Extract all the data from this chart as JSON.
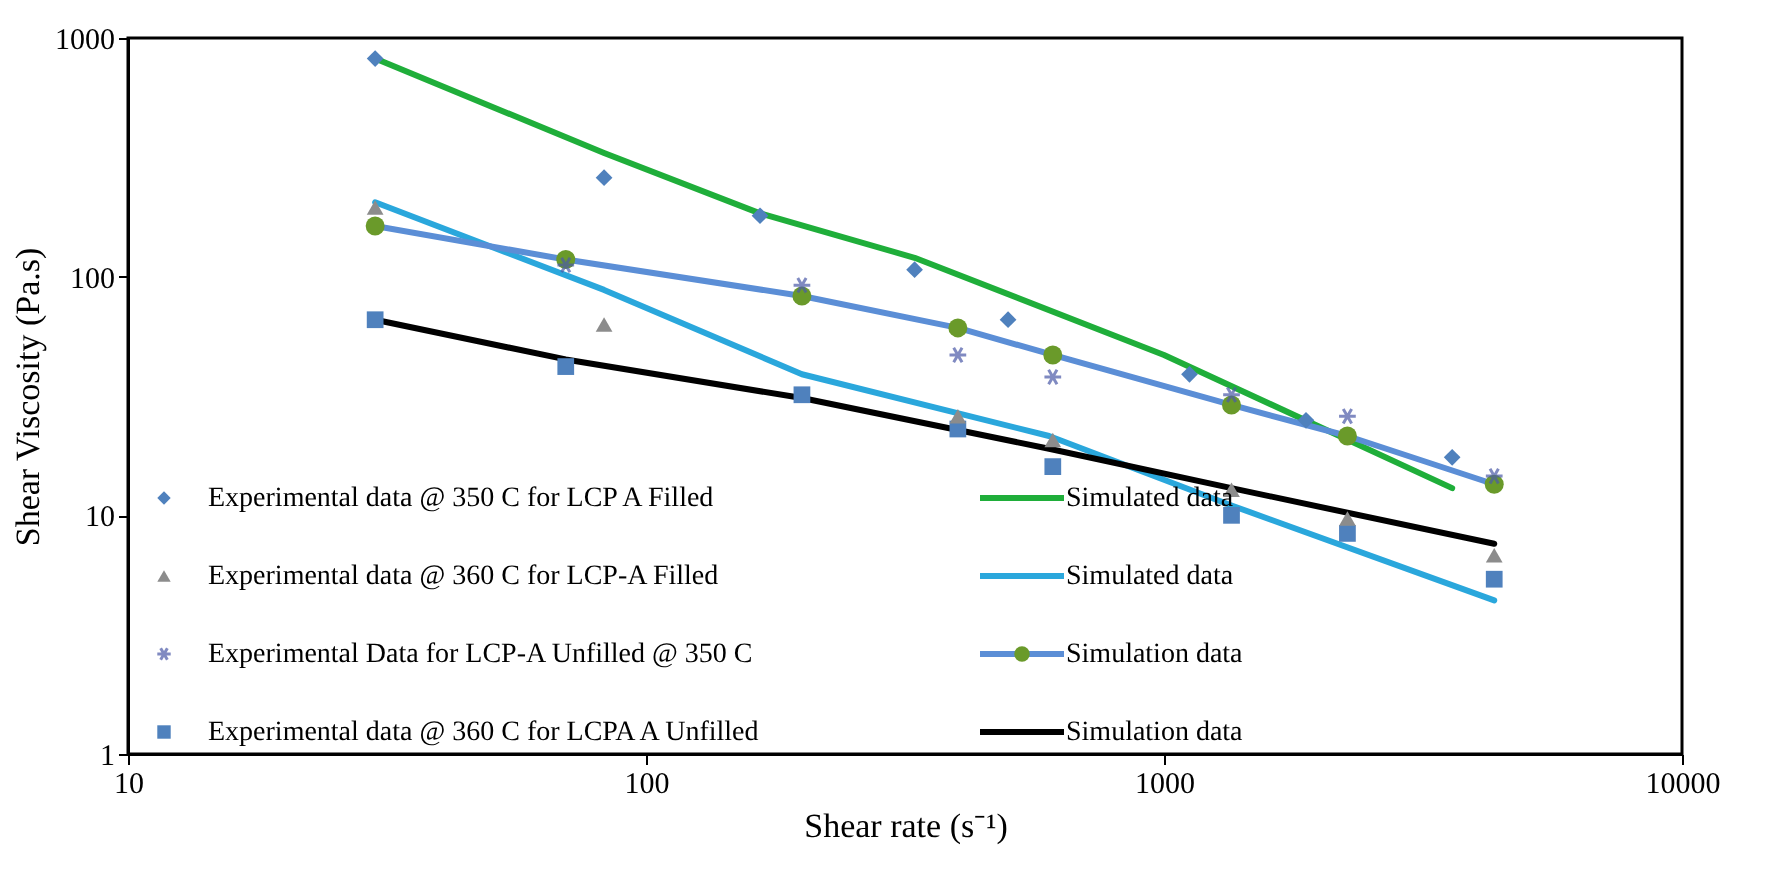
{
  "chart_data": {
    "type": "scatter",
    "xlabel": "Shear rate (s⁻¹)",
    "ylabel": "Shear Viscosity (Pa.s)",
    "log": "xy",
    "xlim": [
      10,
      10000
    ],
    "ylim": [
      1,
      1000
    ],
    "xticks": [
      10,
      100,
      1000,
      10000
    ],
    "yticks": [
      1,
      10,
      100,
      1000
    ],
    "grid": false,
    "legend": "bottom left",
    "series": [
      {
        "name": "Experimental data @ 350 C for LCP A Filled",
        "marker": "diamond",
        "color": "#4f81bd",
        "x": [
          30,
          83,
          166,
          330,
          500,
          1120,
          1880,
          3600
        ],
        "values": [
          820,
          260,
          180,
          107,
          66,
          39,
          25,
          17.5
        ]
      },
      {
        "name": "Simulated data",
        "type": "line",
        "color": "#1fae3a",
        "x": [
          30,
          83,
          165,
          330,
          1000,
          3600
        ],
        "values": [
          820,
          330,
          185,
          120,
          47,
          13
        ]
      },
      {
        "name": "Experimental data @ 360 C for LCP-A Filled",
        "marker": "triangle",
        "color": "#8c8c8c",
        "x": [
          30,
          83,
          400,
          610,
          1350,
          2260,
          4340
        ],
        "values": [
          195,
          63,
          26,
          20.7,
          12.8,
          9.7,
          6.8
        ]
      },
      {
        "name": "Simulated data",
        "type": "line",
        "color": "#2aa7dc",
        "x": [
          30,
          83,
          200,
          600,
          1350,
          4340
        ],
        "values": [
          205,
          88,
          39,
          21.5,
          11,
          4.4
        ]
      },
      {
        "name": "Experimental Data for LCP-A Unfilled @ 350 C",
        "marker": "cross",
        "color": "#4b5aa8",
        "x": [
          70,
          200,
          400,
          610,
          1350,
          2260,
          4340
        ],
        "values": [
          112,
          92,
          47,
          38,
          32,
          26,
          14.6
        ]
      },
      {
        "name": "Simulation data",
        "type": "line",
        "marker": "circle",
        "color": "#5b8ed6",
        "colors": [
          "#6a9a2a",
          "#6a9a2a",
          "#6a9a2a",
          "#6a9a2a",
          "#6a9a2a",
          "#6a9a2a",
          "#6a9a2a",
          "#6a9a2a"
        ],
        "x": [
          30,
          70,
          200,
          400,
          610,
          1350,
          2260,
          4340
        ],
        "values": [
          163,
          118,
          83,
          61,
          47,
          29,
          21.5,
          13.5
        ]
      },
      {
        "name": "Experimental data @ 360 C for LCPA A Unfilled",
        "marker": "square",
        "color": "#4f81bd",
        "x": [
          30,
          70,
          200,
          400,
          610,
          1350,
          2260,
          4340
        ],
        "values": [
          66,
          42,
          32,
          23,
          16,
          10,
          8.4,
          5.4
        ]
      },
      {
        "name": "Simulation data",
        "type": "line",
        "color": "#000000",
        "x": [
          30,
          70,
          200,
          600,
          1350,
          4340
        ],
        "values": [
          66,
          45,
          31,
          19,
          13,
          7.6
        ]
      }
    ]
  }
}
